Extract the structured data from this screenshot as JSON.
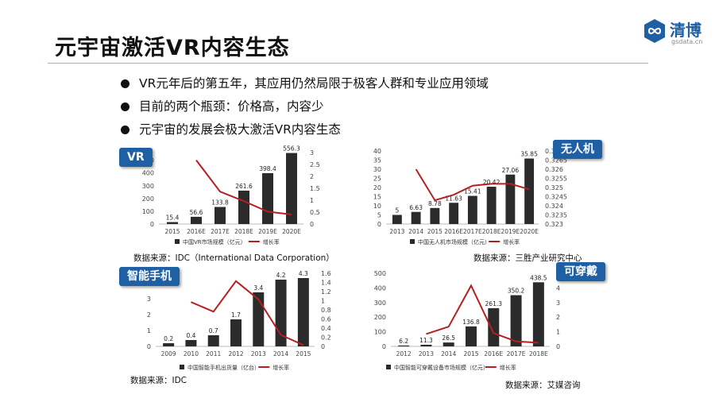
{
  "page": {
    "title": "元宇宙激活VR内容生态"
  },
  "logo": {
    "name": "清博",
    "site": "gsdata.cn",
    "icon": "infinity-cloud-icon"
  },
  "bullets": [
    "VR元年后的第五年，其应用仍然局限于极客人群和专业应用领域",
    "目前的两个瓶颈：价格高，内容少",
    "元宇宙的发展会极大激活VR内容生态"
  ],
  "colors": {
    "bar": "#2b2b2b",
    "line": "#b51f23",
    "badge": "#1f5fa3"
  },
  "charts": {
    "vr": {
      "badge": "VR",
      "source": "数据来源：IDC（International Data Corporation）"
    },
    "drone": {
      "badge": "无人机",
      "source": "数据来源：三胜产业研究中心"
    },
    "phone": {
      "badge": "智能手机",
      "source": "数据来源：IDC"
    },
    "wear": {
      "badge": "可穿戴",
      "source": "数据来源：艾媒咨询"
    }
  },
  "chart_data": [
    {
      "id": "vr",
      "type": "bar",
      "categories": [
        "2015",
        "2016E",
        "2017E",
        "2018E",
        "2019E",
        "2020E"
      ],
      "series": [
        {
          "name": "中国VR市场规模（亿元）",
          "type": "bar",
          "values": [
            15.4,
            56.6,
            133.8,
            261.6,
            398.4,
            556.3
          ],
          "labels": [
            "15.4",
            "56.6",
            "133.8",
            "261.6",
            "398.4",
            "556.3"
          ]
        },
        {
          "name": "增长率",
          "type": "line",
          "axis": "right",
          "values": [
            null,
            2.68,
            1.36,
            0.96,
            0.52,
            0.4
          ]
        }
      ],
      "y_ticks": [
        "0",
        "100",
        "200",
        "300",
        "400",
        "500"
      ],
      "y2_ticks": [
        "0",
        "0.5",
        "1",
        "1.5",
        "2",
        "2.5",
        "3"
      ],
      "ylim": [
        0,
        560
      ],
      "y2lim": [
        0,
        3
      ],
      "legend": "bottom"
    },
    {
      "id": "drone",
      "type": "bar",
      "categories": [
        "2013",
        "2014",
        "2015",
        "2016E",
        "2017E",
        "2018E",
        "2019E",
        "2020E"
      ],
      "series": [
        {
          "name": "中国无人机市场规模（亿元）",
          "type": "bar",
          "values": [
            5,
            6.63,
            8.78,
            11.63,
            15.41,
            20.42,
            27.06,
            35.85
          ],
          "labels": [
            "5",
            "6.63",
            "8.78",
            "11.63",
            "15.41",
            "20.42",
            "27.06",
            "35.85"
          ]
        },
        {
          "name": "增长率",
          "type": "line",
          "axis": "right",
          "values": [
            null,
            0.326,
            0.3243,
            0.3246,
            0.3251,
            0.3252,
            0.3252,
            0.3249
          ]
        }
      ],
      "y_ticks": [
        "0",
        "5",
        "10",
        "15",
        "20",
        "25",
        "30",
        "35",
        "40"
      ],
      "y2_ticks": [
        "0.323",
        "0.3235",
        "0.324",
        "0.3245",
        "0.325",
        "0.3255",
        "0.326",
        "0.3265",
        "0.327"
      ],
      "ylim": [
        0,
        40
      ],
      "y2lim": [
        0.323,
        0.327
      ],
      "legend": "bottom"
    },
    {
      "id": "phone",
      "type": "bar",
      "categories": [
        "2009",
        "2010",
        "2011",
        "2012",
        "2013",
        "2014",
        "2015"
      ],
      "series": [
        {
          "name": "中国智能手机出货量（亿台）",
          "type": "bar",
          "values": [
            0.2,
            0.4,
            0.7,
            1.7,
            3.4,
            4.2,
            4.3
          ],
          "labels": [
            "0.2",
            "0.4",
            "0.7",
            "1.7",
            "3.4",
            "4.2",
            "4.3"
          ]
        },
        {
          "name": "增长率",
          "type": "line",
          "axis": "right",
          "values": [
            null,
            0.97,
            0.76,
            1.43,
            1.03,
            0.25,
            0.03
          ]
        }
      ],
      "y_ticks": [
        "0",
        "1",
        "2",
        "3",
        "4"
      ],
      "y2_ticks": [
        "0",
        "0.2",
        "0.4",
        "0.6",
        "0.8",
        "1",
        "1.2",
        "1.4",
        "1.6"
      ],
      "ylim": [
        0,
        4.6
      ],
      "y2lim": [
        0,
        1.6
      ],
      "legend": "bottom"
    },
    {
      "id": "wear",
      "type": "bar",
      "categories": [
        "2012",
        "2013",
        "2014",
        "2015",
        "2016E",
        "2017E",
        "2018E"
      ],
      "series": [
        {
          "name": "中国智能可穿戴设备市场规模（亿元）",
          "type": "bar",
          "values": [
            6.2,
            11.3,
            26.5,
            136.8,
            261.3,
            350.2,
            438.5
          ],
          "labels": [
            "6.2",
            "11.3",
            "26.5",
            "136.8",
            "261.3",
            "350.2",
            "438.5"
          ]
        },
        {
          "name": "增长率",
          "type": "line",
          "axis": "right",
          "values": [
            null,
            0.85,
            1.35,
            4.16,
            0.91,
            0.34,
            0.25
          ]
        }
      ],
      "y_ticks": [
        "0",
        "100",
        "200",
        "300",
        "400",
        "500"
      ],
      "y2_ticks": [
        "0",
        "1",
        "2",
        "3",
        "4",
        "5"
      ],
      "ylim": [
        0,
        500
      ],
      "y2lim": [
        0,
        5
      ],
      "legend": "bottom"
    }
  ]
}
